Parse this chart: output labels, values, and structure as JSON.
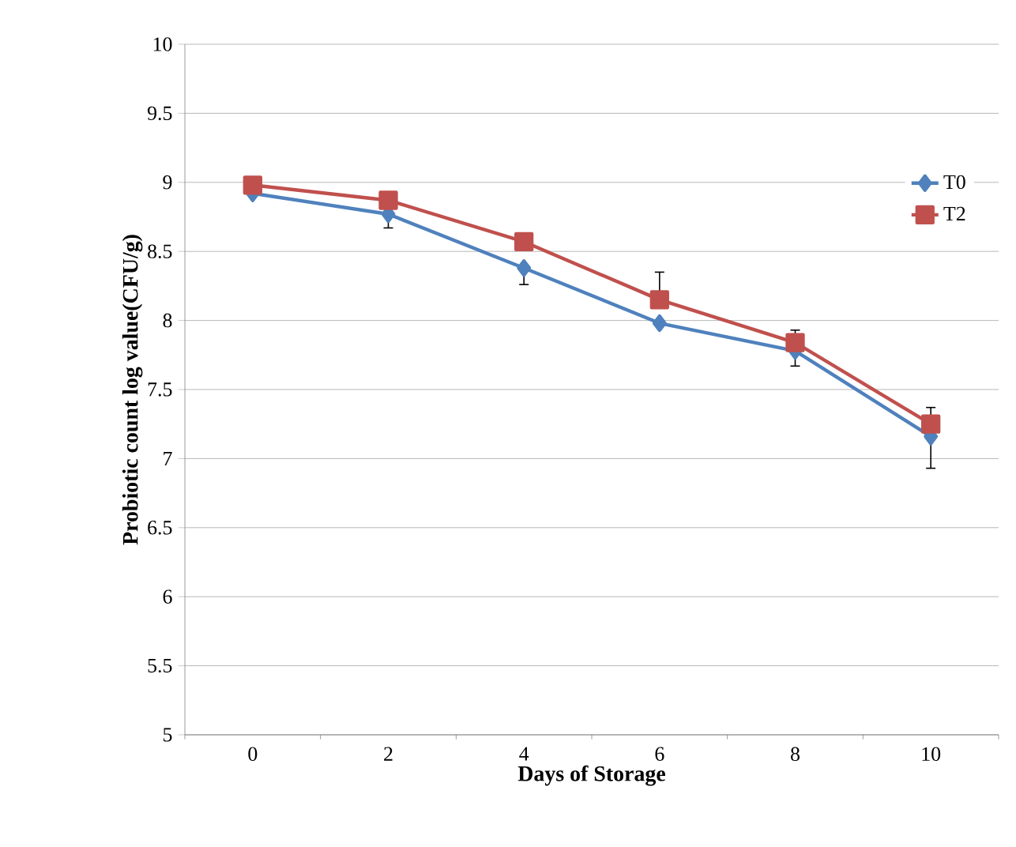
{
  "chart_data": {
    "type": "line",
    "xlabel": "Days of Storage",
    "ylabel": "Probiotic  count log value(CFU/g)",
    "categories": [
      "0",
      "2",
      "4",
      "6",
      "8",
      "10"
    ],
    "series": [
      {
        "name": "T0",
        "color": "#4f81bd",
        "marker": "diamond",
        "values": [
          8.92,
          8.77,
          8.38,
          7.98,
          7.78,
          7.16
        ],
        "errors": [
          null,
          [
            8.67,
            8.77
          ],
          [
            8.26,
            8.38
          ],
          null,
          [
            7.67,
            7.78
          ],
          [
            6.93,
            7.16
          ]
        ]
      },
      {
        "name": "T2",
        "color": "#c0504d",
        "marker": "square",
        "values": [
          8.98,
          8.87,
          8.57,
          8.15,
          7.84,
          7.25
        ],
        "errors": [
          null,
          null,
          null,
          [
            8.15,
            8.35
          ],
          [
            7.84,
            7.93
          ],
          [
            7.25,
            7.37
          ]
        ]
      }
    ],
    "ylim": [
      5,
      10
    ],
    "yticks": [
      5,
      5.5,
      6,
      6.5,
      7,
      7.5,
      8,
      8.5,
      9,
      9.5,
      10
    ],
    "grid": "y",
    "legend": "top right"
  }
}
